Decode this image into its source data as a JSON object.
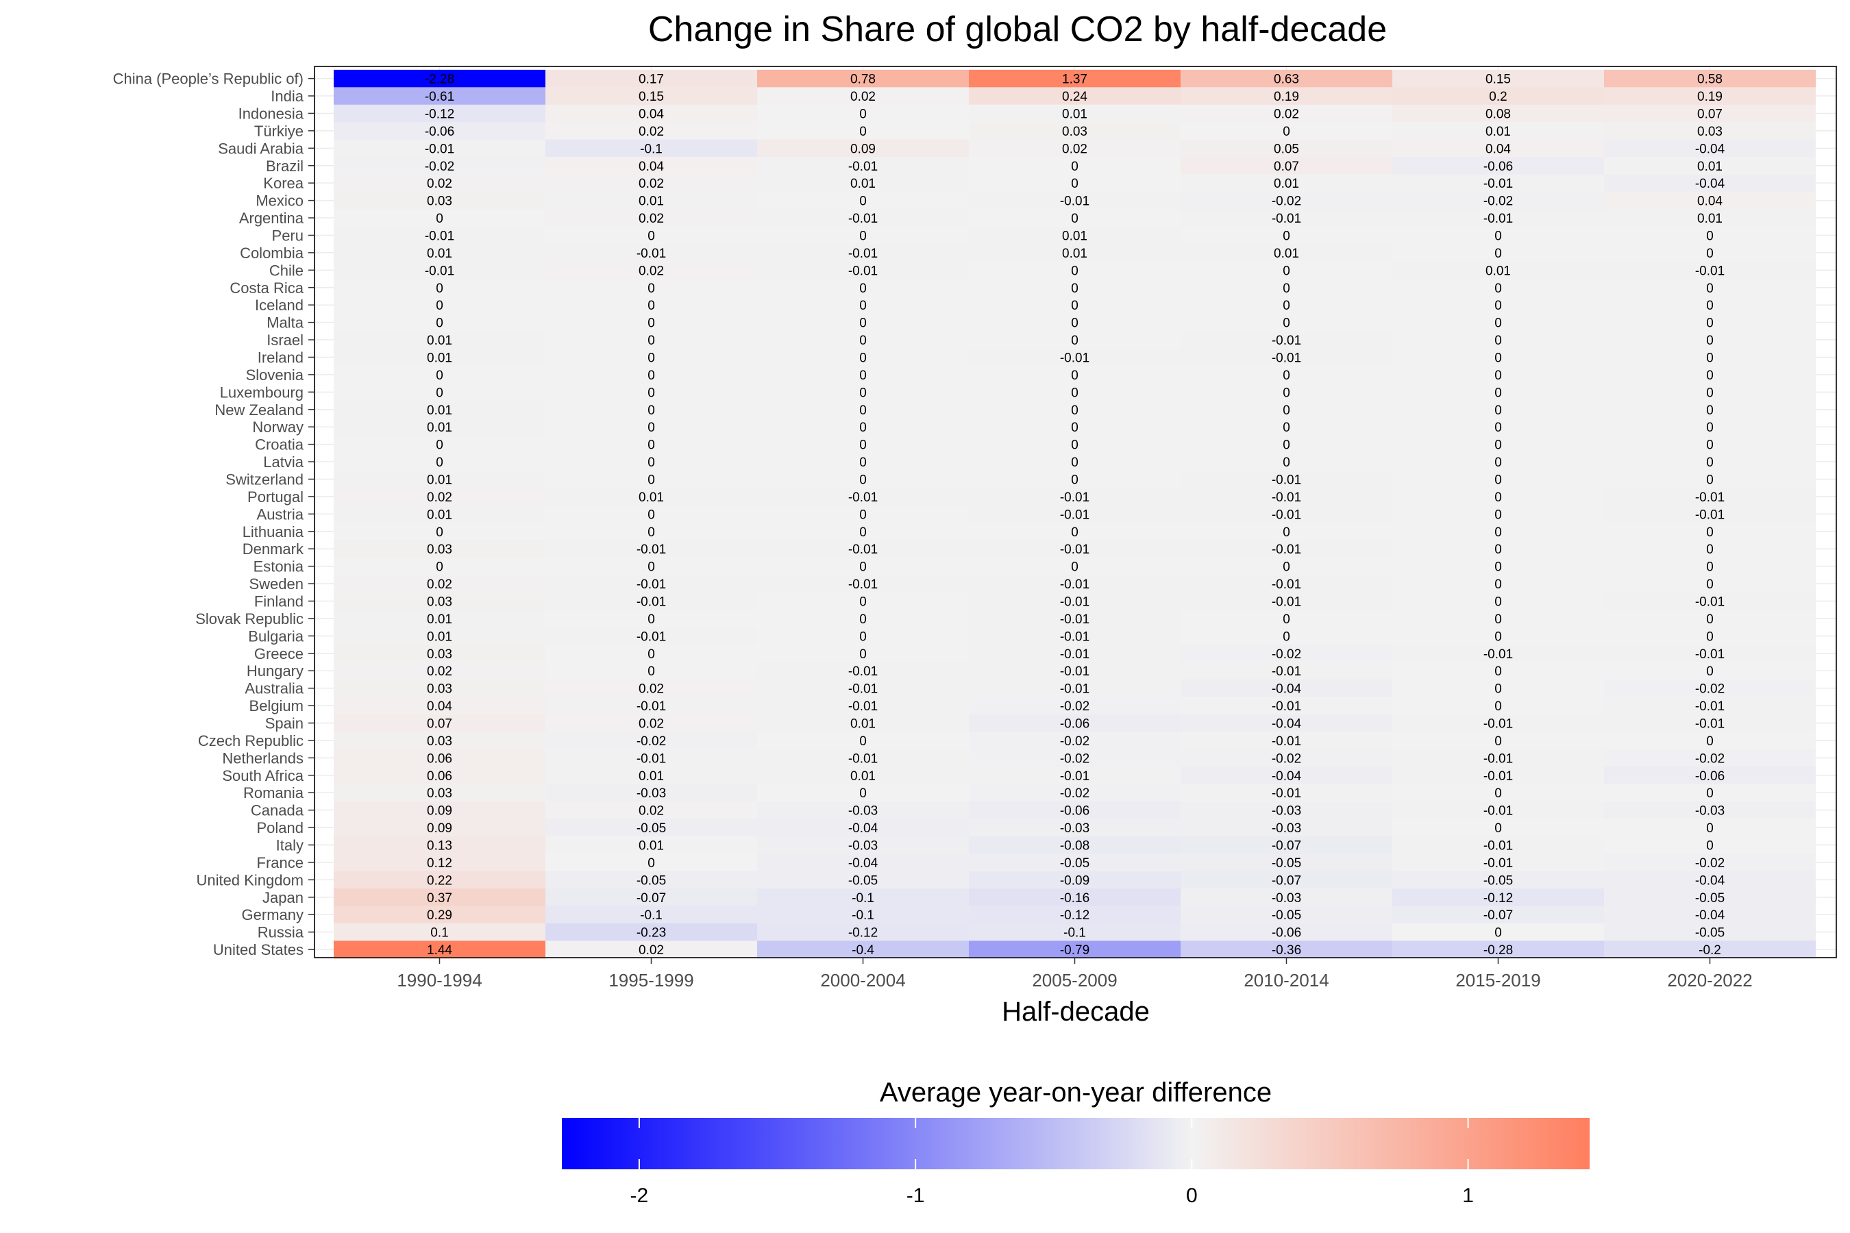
{
  "chart_data": {
    "type": "heatmap",
    "title": "Change in Share of global CO2 by half-decade",
    "xlabel": "Half-decade",
    "ylabel": "",
    "columns": [
      "1990-1994",
      "1995-1999",
      "2000-2004",
      "2005-2009",
      "2010-2014",
      "2015-2019",
      "2020-2022"
    ],
    "rows": [
      {
        "name": "China (People’s Republic of)",
        "values": [
          "-2.28",
          "0.17",
          "0.78",
          "1.37",
          "0.63",
          "0.15",
          "0.58"
        ]
      },
      {
        "name": "India",
        "values": [
          "-0.61",
          "0.15",
          "0.02",
          "0.24",
          "0.19",
          "0.2",
          "0.19"
        ]
      },
      {
        "name": "Indonesia",
        "values": [
          "-0.12",
          "0.04",
          "0",
          "0.01",
          "0.02",
          "0.08",
          "0.07"
        ]
      },
      {
        "name": "Türkiye",
        "values": [
          "-0.06",
          "0.02",
          "0",
          "0.03",
          "0",
          "0.01",
          "0.03"
        ]
      },
      {
        "name": "Saudi Arabia",
        "values": [
          "-0.01",
          "-0.1",
          "0.09",
          "0.02",
          "0.05",
          "0.04",
          "-0.04"
        ]
      },
      {
        "name": "Brazil",
        "values": [
          "-0.02",
          "0.04",
          "-0.01",
          "0",
          "0.07",
          "-0.06",
          "0.01"
        ]
      },
      {
        "name": "Korea",
        "values": [
          "0.02",
          "0.02",
          "0.01",
          "0",
          "0.01",
          "-0.01",
          "-0.04"
        ]
      },
      {
        "name": "Mexico",
        "values": [
          "0.03",
          "0.01",
          "0",
          "-0.01",
          "-0.02",
          "-0.02",
          "0.04"
        ]
      },
      {
        "name": "Argentina",
        "values": [
          "0",
          "0.02",
          "-0.01",
          "0",
          "-0.01",
          "-0.01",
          "0.01"
        ]
      },
      {
        "name": "Peru",
        "values": [
          "-0.01",
          "0",
          "0",
          "0.01",
          "0",
          "0",
          "0"
        ]
      },
      {
        "name": "Colombia",
        "values": [
          "0.01",
          "-0.01",
          "-0.01",
          "0.01",
          "0.01",
          "0",
          "0"
        ]
      },
      {
        "name": "Chile",
        "values": [
          "-0.01",
          "0.02",
          "-0.01",
          "0",
          "0",
          "0.01",
          "-0.01"
        ]
      },
      {
        "name": "Costa Rica",
        "values": [
          "0",
          "0",
          "0",
          "0",
          "0",
          "0",
          "0"
        ]
      },
      {
        "name": "Iceland",
        "values": [
          "0",
          "0",
          "0",
          "0",
          "0",
          "0",
          "0"
        ]
      },
      {
        "name": "Malta",
        "values": [
          "0",
          "0",
          "0",
          "0",
          "0",
          "0",
          "0"
        ]
      },
      {
        "name": "Israel",
        "values": [
          "0.01",
          "0",
          "0",
          "0",
          "-0.01",
          "0",
          "0"
        ]
      },
      {
        "name": "Ireland",
        "values": [
          "0.01",
          "0",
          "0",
          "-0.01",
          "-0.01",
          "0",
          "0"
        ]
      },
      {
        "name": "Slovenia",
        "values": [
          "0",
          "0",
          "0",
          "0",
          "0",
          "0",
          "0"
        ]
      },
      {
        "name": "Luxembourg",
        "values": [
          "0",
          "0",
          "0",
          "0",
          "0",
          "0",
          "0"
        ]
      },
      {
        "name": "New Zealand",
        "values": [
          "0.01",
          "0",
          "0",
          "0",
          "0",
          "0",
          "0"
        ]
      },
      {
        "name": "Norway",
        "values": [
          "0.01",
          "0",
          "0",
          "0",
          "0",
          "0",
          "0"
        ]
      },
      {
        "name": "Croatia",
        "values": [
          "0",
          "0",
          "0",
          "0",
          "0",
          "0",
          "0"
        ]
      },
      {
        "name": "Latvia",
        "values": [
          "0",
          "0",
          "0",
          "0",
          "0",
          "0",
          "0"
        ]
      },
      {
        "name": "Switzerland",
        "values": [
          "0.01",
          "0",
          "0",
          "0",
          "-0.01",
          "0",
          "0"
        ]
      },
      {
        "name": "Portugal",
        "values": [
          "0.02",
          "0.01",
          "-0.01",
          "-0.01",
          "-0.01",
          "0",
          "-0.01"
        ]
      },
      {
        "name": "Austria",
        "values": [
          "0.01",
          "0",
          "0",
          "-0.01",
          "-0.01",
          "0",
          "-0.01"
        ]
      },
      {
        "name": "Lithuania",
        "values": [
          "0",
          "0",
          "0",
          "0",
          "0",
          "0",
          "0"
        ]
      },
      {
        "name": "Denmark",
        "values": [
          "0.03",
          "-0.01",
          "-0.01",
          "-0.01",
          "-0.01",
          "0",
          "0"
        ]
      },
      {
        "name": "Estonia",
        "values": [
          "0",
          "0",
          "0",
          "0",
          "0",
          "0",
          "0"
        ]
      },
      {
        "name": "Sweden",
        "values": [
          "0.02",
          "-0.01",
          "-0.01",
          "-0.01",
          "-0.01",
          "0",
          "0"
        ]
      },
      {
        "name": "Finland",
        "values": [
          "0.03",
          "-0.01",
          "0",
          "-0.01",
          "-0.01",
          "0",
          "-0.01"
        ]
      },
      {
        "name": "Slovak Republic",
        "values": [
          "0.01",
          "0",
          "0",
          "-0.01",
          "0",
          "0",
          "0"
        ]
      },
      {
        "name": "Bulgaria",
        "values": [
          "0.01",
          "-0.01",
          "0",
          "-0.01",
          "0",
          "0",
          "0"
        ]
      },
      {
        "name": "Greece",
        "values": [
          "0.03",
          "0",
          "0",
          "-0.01",
          "-0.02",
          "-0.01",
          "-0.01"
        ]
      },
      {
        "name": "Hungary",
        "values": [
          "0.02",
          "0",
          "-0.01",
          "-0.01",
          "-0.01",
          "0",
          "0"
        ]
      },
      {
        "name": "Australia",
        "values": [
          "0.03",
          "0.02",
          "-0.01",
          "-0.01",
          "-0.04",
          "0",
          "-0.02"
        ]
      },
      {
        "name": "Belgium",
        "values": [
          "0.04",
          "-0.01",
          "-0.01",
          "-0.02",
          "-0.01",
          "0",
          "-0.01"
        ]
      },
      {
        "name": "Spain",
        "values": [
          "0.07",
          "0.02",
          "0.01",
          "-0.06",
          "-0.04",
          "-0.01",
          "-0.01"
        ]
      },
      {
        "name": "Czech Republic",
        "values": [
          "0.03",
          "-0.02",
          "0",
          "-0.02",
          "-0.01",
          "0",
          "0"
        ]
      },
      {
        "name": "Netherlands",
        "values": [
          "0.06",
          "-0.01",
          "-0.01",
          "-0.02",
          "-0.02",
          "-0.01",
          "-0.02"
        ]
      },
      {
        "name": "South Africa",
        "values": [
          "0.06",
          "0.01",
          "0.01",
          "-0.01",
          "-0.04",
          "-0.01",
          "-0.06"
        ]
      },
      {
        "name": "Romania",
        "values": [
          "0.03",
          "-0.03",
          "0",
          "-0.02",
          "-0.01",
          "0",
          "0"
        ]
      },
      {
        "name": "Canada",
        "values": [
          "0.09",
          "0.02",
          "-0.03",
          "-0.06",
          "-0.03",
          "-0.01",
          "-0.03"
        ]
      },
      {
        "name": "Poland",
        "values": [
          "0.09",
          "-0.05",
          "-0.04",
          "-0.03",
          "-0.03",
          "0",
          "0"
        ]
      },
      {
        "name": "Italy",
        "values": [
          "0.13",
          "0.01",
          "-0.03",
          "-0.08",
          "-0.07",
          "-0.01",
          "0"
        ]
      },
      {
        "name": "France",
        "values": [
          "0.12",
          "0",
          "-0.04",
          "-0.05",
          "-0.05",
          "-0.01",
          "-0.02"
        ]
      },
      {
        "name": "United Kingdom",
        "values": [
          "0.22",
          "-0.05",
          "-0.05",
          "-0.09",
          "-0.07",
          "-0.05",
          "-0.04"
        ]
      },
      {
        "name": "Japan",
        "values": [
          "0.37",
          "-0.07",
          "-0.1",
          "-0.16",
          "-0.03",
          "-0.12",
          "-0.05"
        ]
      },
      {
        "name": "Germany",
        "values": [
          "0.29",
          "-0.1",
          "-0.1",
          "-0.12",
          "-0.05",
          "-0.07",
          "-0.04"
        ]
      },
      {
        "name": "Russia",
        "values": [
          "0.1",
          "-0.23",
          "-0.12",
          "-0.1",
          "-0.06",
          "0",
          "-0.05"
        ]
      },
      {
        "name": "United States",
        "values": [
          "1.44",
          "0.02",
          "-0.4",
          "-0.79",
          "-0.36",
          "-0.28",
          "-0.2"
        ]
      }
    ],
    "legend": {
      "title": "Average year-on-year difference",
      "placement": "bottom",
      "range": [
        -2.28,
        1.44
      ],
      "ticks": [
        "-2",
        "-1",
        "0",
        "1"
      ]
    },
    "colors": {
      "low": "#0000ff",
      "mid": "#f2f2f2",
      "high": "#ff7f5f"
    },
    "grid": true
  }
}
